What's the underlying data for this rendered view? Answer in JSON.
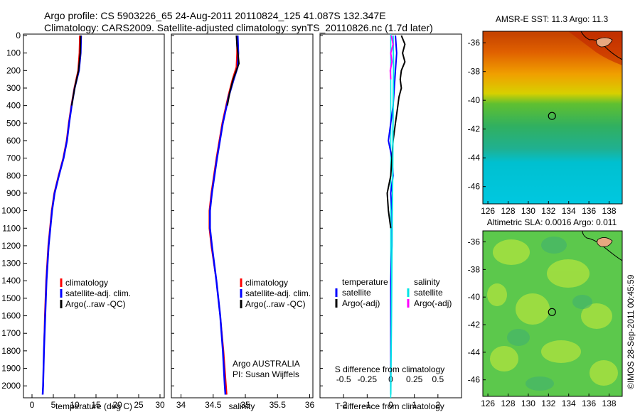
{
  "header": {
    "line1": "Argo profile: CS 5903226_65 24-Aug-2011 20110824_125 41.087S 132.347E",
    "line2": "Climatology: CARS2009. Satellite-adjusted climatology: synTS_20110826.nc (1.7d later)"
  },
  "credit": "©IMOS 28-Sep-2011 00:45:59",
  "colors": {
    "climatology": "#ff0000",
    "satellite": "#0000ff",
    "argo": "#000000",
    "sal_satellite": "#00e5e5",
    "sal_argo": "#ff00ff"
  },
  "depth_ticks": [
    "0",
    "100",
    "200",
    "300",
    "400",
    "500",
    "600",
    "700",
    "800",
    "900",
    "1000",
    "1100",
    "1200",
    "1300",
    "1400",
    "1500",
    "1600",
    "1700",
    "1800",
    "1900",
    "2000"
  ],
  "chart_data": [
    {
      "type": "line",
      "panel": "temperature",
      "xlabel": "temperature (deg C)",
      "ylabel": "",
      "xlim": [
        -2,
        31
      ],
      "ylim": [
        2060,
        0
      ],
      "x_ticks": [
        "0",
        "5",
        "10",
        "15",
        "20",
        "25",
        "30"
      ],
      "legend": [
        "climatology",
        "satellite-adj. clim.",
        "Argo(..raw -QC)"
      ],
      "legend_position": "bottom-right",
      "series": [
        {
          "name": "climatology",
          "color": "#ff0000",
          "depth": [
            0,
            100,
            200,
            300,
            400,
            500,
            600,
            700,
            800,
            900,
            1000,
            1200,
            1400,
            1600,
            1800,
            2000,
            2050
          ],
          "values": [
            11.2,
            11.1,
            10.8,
            9.9,
            9.2,
            8.6,
            8.1,
            7.3,
            6.2,
            5.2,
            4.6,
            3.8,
            3.3,
            3.0,
            2.8,
            2.6,
            2.5
          ]
        },
        {
          "name": "satellite-adj. clim.",
          "color": "#0000ff",
          "depth": [
            0,
            100,
            200,
            300,
            400,
            500,
            600,
            700,
            800,
            900,
            1000,
            1200,
            1400,
            1600,
            1800,
            2000,
            2050
          ],
          "values": [
            11.5,
            11.4,
            11.0,
            10.0,
            9.3,
            8.7,
            8.2,
            7.4,
            6.3,
            5.3,
            4.7,
            3.9,
            3.4,
            3.1,
            2.8,
            2.6,
            2.5
          ]
        },
        {
          "name": "Argo(..raw -QC)",
          "color": "#000000",
          "depth": [
            0,
            100,
            200,
            300,
            400
          ],
          "values": [
            11.4,
            11.3,
            10.9,
            10.0,
            9.3
          ]
        }
      ]
    },
    {
      "type": "line",
      "panel": "salinity",
      "xlabel": "salinity",
      "ylabel": "",
      "xlim": [
        33.85,
        36.05
      ],
      "ylim": [
        2060,
        0
      ],
      "x_ticks": [
        "34",
        "34.5",
        "35",
        "35.5",
        "36"
      ],
      "legend": [
        "climatology",
        "satellite-adj. clim.",
        "Argo(..raw -QC)"
      ],
      "legend_position": "bottom-right",
      "annotation": [
        "Argo AUSTRALIA",
        "PI: Susan Wijffels"
      ],
      "series": [
        {
          "name": "climatology",
          "color": "#ff0000",
          "depth": [
            0,
            100,
            180,
            250,
            350,
            500,
            700,
            900,
            1000,
            1100,
            1200,
            1400,
            1600,
            1800,
            2000,
            2050
          ],
          "values": [
            34.87,
            34.87,
            34.86,
            34.8,
            34.73,
            34.64,
            34.55,
            34.47,
            34.44,
            34.44,
            34.47,
            34.55,
            34.61,
            34.66,
            34.7,
            34.71
          ]
        },
        {
          "name": "satellite-adj. clim.",
          "color": "#0000ff",
          "depth": [
            0,
            100,
            180,
            250,
            350,
            500,
            700,
            900,
            1000,
            1100,
            1200,
            1400,
            1600,
            1800,
            2000,
            2050
          ],
          "values": [
            34.88,
            34.89,
            34.88,
            34.82,
            34.74,
            34.65,
            34.56,
            34.48,
            34.45,
            34.45,
            34.48,
            34.55,
            34.61,
            34.65,
            34.68,
            34.69
          ]
        },
        {
          "name": "Argo(..raw -QC)",
          "color": "#000000",
          "depth": [
            0,
            60,
            120,
            160,
            200,
            250,
            320,
            400
          ],
          "values": [
            34.86,
            34.87,
            34.89,
            34.9,
            34.86,
            34.81,
            34.76,
            34.72
          ]
        }
      ]
    },
    {
      "type": "line",
      "panel": "difference",
      "xlabel": "T difference from climatology",
      "xlabel_top": "S difference from climatology",
      "xlim": [
        -3,
        3
      ],
      "ylim": [
        2060,
        0
      ],
      "x_ticks": [
        "-2",
        "-1",
        "0",
        "1",
        "2"
      ],
      "s_ticks": [
        "-0.5",
        "-0.25",
        "0",
        "0.25",
        "0.5"
      ],
      "legend_left_title": "temperature",
      "legend_right_title": "salinity",
      "legend_left": [
        "satellite",
        "Argo(-adj)"
      ],
      "legend_right": [
        "satellite",
        "Argo(-adj)"
      ],
      "series": [
        {
          "name": "temperature satellite",
          "color": "#0000ff",
          "depth": [
            0,
            100,
            200,
            400,
            600,
            700,
            800,
            900,
            1000,
            1200,
            1400,
            1600,
            1800,
            2000,
            2050
          ],
          "values": [
            0.2,
            0.25,
            0.2,
            0.1,
            -0.1,
            0.05,
            0.1,
            0.0,
            0.05,
            0.05,
            0.0,
            0.0,
            0.0,
            0.0,
            0.0
          ]
        },
        {
          "name": "temperature Argo(-adj)",
          "color": "#000000",
          "depth": [
            0,
            50,
            100,
            150,
            200,
            250,
            300,
            350,
            400,
            500,
            600,
            700,
            800,
            900,
            1000,
            1100
          ],
          "values": [
            0.45,
            0.6,
            0.5,
            0.6,
            0.45,
            0.4,
            0.45,
            0.35,
            0.3,
            0.2,
            0.1,
            0.05,
            0.0,
            -0.15,
            -0.1,
            0.0
          ]
        },
        {
          "name": "salinity satellite",
          "color": "#00e5e5",
          "depth": [
            0,
            200,
            400,
            800,
            1200,
            1600,
            2050
          ],
          "values": [
            0.1,
            0.12,
            0.1,
            0.08,
            0.05,
            0.03,
            0.0
          ]
        },
        {
          "name": "salinity Argo(-adj)",
          "color": "#ff00ff",
          "depth": [
            0,
            50,
            100,
            150,
            200,
            250
          ],
          "values": [
            0.02,
            0.1,
            0.0,
            0.05,
            -0.02,
            0.0
          ]
        }
      ]
    },
    {
      "type": "heatmap",
      "panel": "sst-map",
      "title": "AMSR-E SST: 11.3 Argo: 11.3",
      "xlim": [
        125.5,
        139.3
      ],
      "ylim": [
        -47.2,
        -35.2
      ],
      "x_ticks": [
        "126",
        "128",
        "130",
        "132",
        "134",
        "136",
        "138"
      ],
      "y_ticks": [
        "-36",
        "-38",
        "-40",
        "-42",
        "-44",
        "-46"
      ],
      "marker": {
        "lon": 132.347,
        "lat": -41.087
      }
    },
    {
      "type": "heatmap",
      "panel": "sla-map",
      "title": "Altimetric SLA: 0.0016 Argo: 0.011",
      "xlim": [
        125.5,
        139.3
      ],
      "ylim": [
        -47.2,
        -35.2
      ],
      "x_ticks": [
        "126",
        "128",
        "130",
        "132",
        "134",
        "136",
        "138"
      ],
      "y_ticks": [
        "-36",
        "-38",
        "-40",
        "-42",
        "-44",
        "-46"
      ],
      "marker": {
        "lon": 132.347,
        "lat": -41.087
      }
    }
  ]
}
